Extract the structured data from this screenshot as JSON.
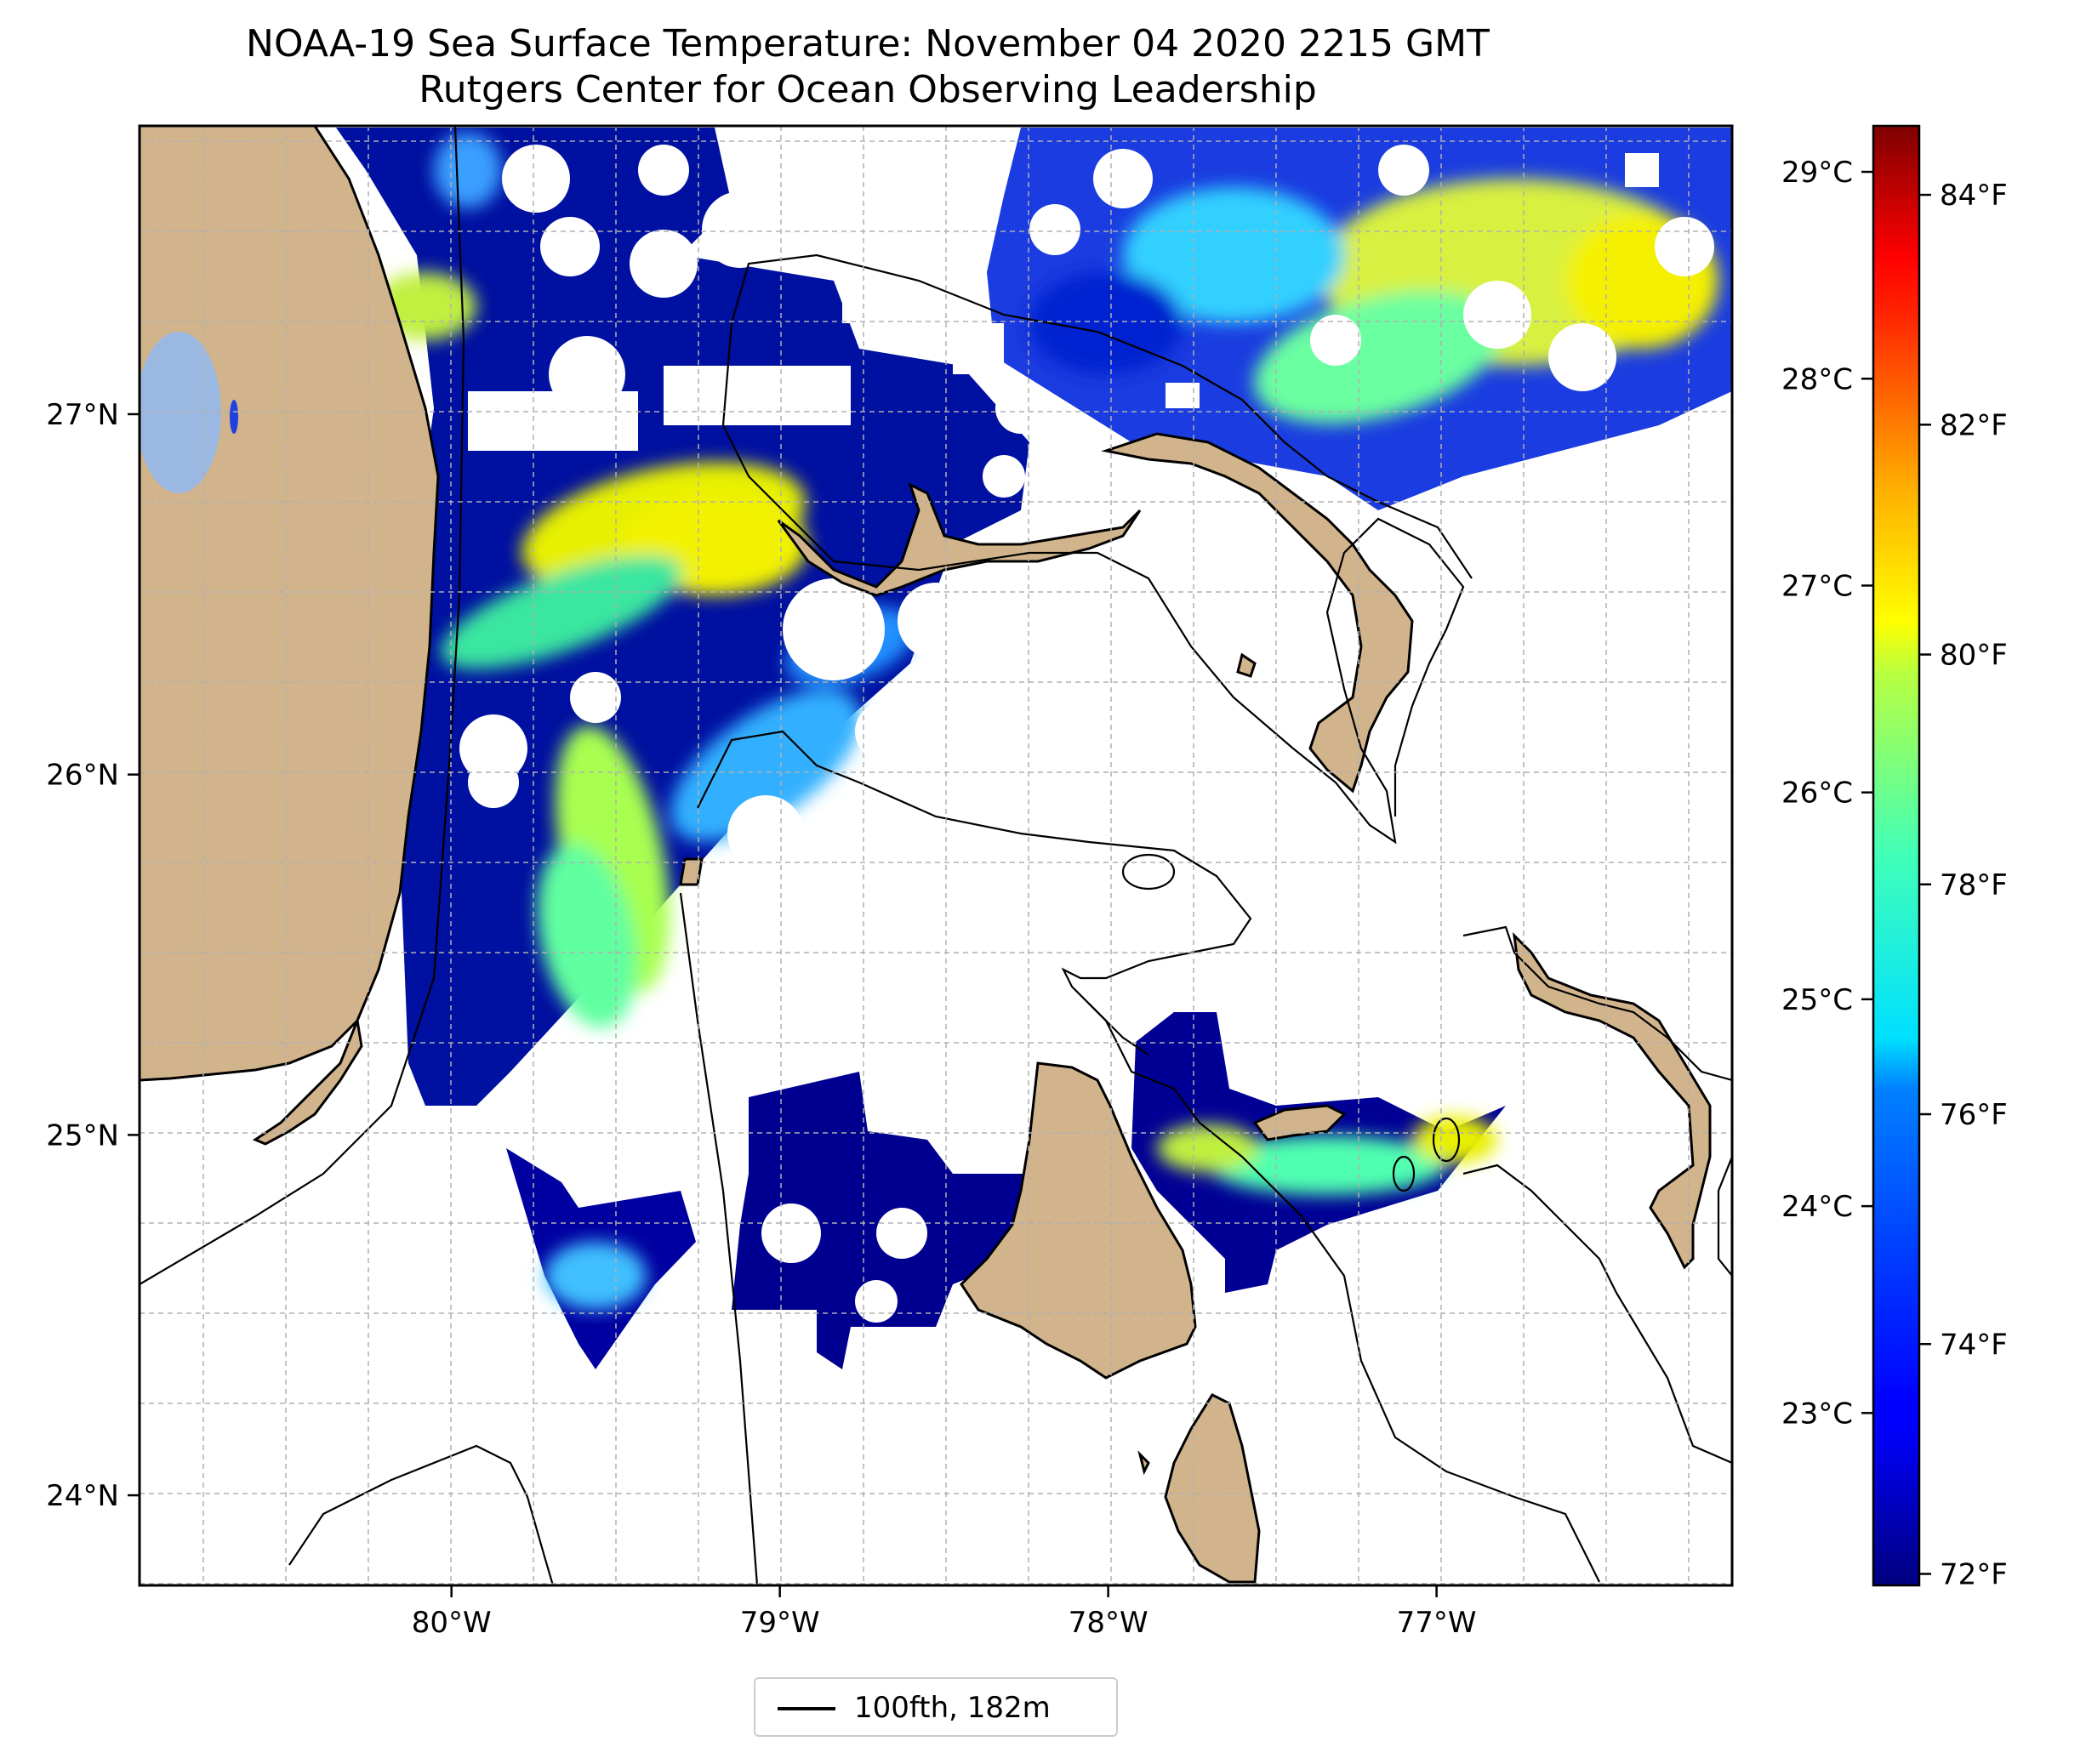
{
  "title": "NOAA-19 Sea Surface Temperature: November 04 2020 2215 GMT",
  "subtitle": "Rutgers Center for Ocean Observing Leadership",
  "map": {
    "lon_range": [
      -80.95,
      -76.1
    ],
    "lat_range": [
      23.75,
      27.8
    ],
    "lon_ticks": [
      {
        "value": -80,
        "label": "80°W"
      },
      {
        "value": -79,
        "label": "79°W"
      },
      {
        "value": -78,
        "label": "78°W"
      },
      {
        "value": -77,
        "label": "77°W"
      }
    ],
    "lat_ticks": [
      {
        "value": 24,
        "label": "24°N"
      },
      {
        "value": 25,
        "label": "25°N"
      },
      {
        "value": 26,
        "label": "26°N"
      },
      {
        "value": 27,
        "label": "27°N"
      }
    ],
    "grid": true,
    "land_color": "#d2b48c",
    "lake_color": "#9bb8e2"
  },
  "colorbar": {
    "colormap": "jet",
    "range_f": [
      71.9,
      84.6
    ],
    "celsius_ticks": [
      {
        "value_f": 84.2,
        "label": "29°C"
      },
      {
        "value_f": 82.4,
        "label": "28°C"
      },
      {
        "value_f": 80.6,
        "label": "27°C"
      },
      {
        "value_f": 78.8,
        "label": "26°C"
      },
      {
        "value_f": 77.0,
        "label": "25°C"
      },
      {
        "value_f": 75.2,
        "label": "24°C"
      },
      {
        "value_f": 73.4,
        "label": "23°C"
      }
    ],
    "fahrenheit_ticks": [
      {
        "value_f": 84,
        "label": "84°F"
      },
      {
        "value_f": 82,
        "label": "82°F"
      },
      {
        "value_f": 80,
        "label": "80°F"
      },
      {
        "value_f": 78,
        "label": "78°F"
      },
      {
        "value_f": 76,
        "label": "76°F"
      },
      {
        "value_f": 74,
        "label": "74°F"
      },
      {
        "value_f": 72,
        "label": "72°F"
      }
    ]
  },
  "legend": {
    "label": "100fth, 182m",
    "placement": "bottom-center"
  }
}
